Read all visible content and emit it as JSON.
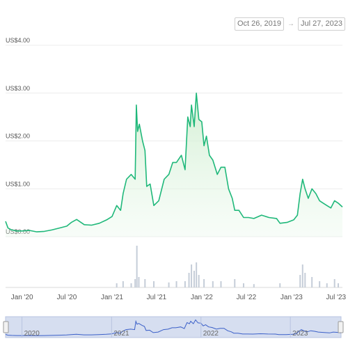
{
  "date_range": {
    "from": "Oct 26, 2019",
    "arrow": "→",
    "to": "Jul 27, 2023"
  },
  "colors": {
    "price_line": "#1fb87a",
    "price_fill": "#e6f7e8",
    "volume_bar": "#c5cdd8",
    "navigator_bg": "#d6def0",
    "navigator_line": "#3a5fc8"
  },
  "chart_data": {
    "type": "area",
    "ylim": [
      0,
      4
    ],
    "y_ticks": [
      {
        "value": 0,
        "label": "US$0.00"
      },
      {
        "value": 1,
        "label": "US$1.00"
      },
      {
        "value": 2,
        "label": "US$2.00"
      },
      {
        "value": 3,
        "label": "US$3.00"
      },
      {
        "value": 4,
        "label": "US$4.00"
      }
    ],
    "x_ticks": [
      {
        "date": "2020-01-01",
        "label": "Jan '20"
      },
      {
        "date": "2020-07-01",
        "label": "Jul '20"
      },
      {
        "date": "2021-01-01",
        "label": "Jan '21"
      },
      {
        "date": "2021-07-01",
        "label": "Jul '21"
      },
      {
        "date": "2022-01-01",
        "label": "Jan '22"
      },
      {
        "date": "2022-07-01",
        "label": "Jul '22"
      },
      {
        "date": "2023-01-01",
        "label": "Jan '23"
      },
      {
        "date": "2023-07-01",
        "label": "Jul '23"
      }
    ],
    "navigator_ticks": [
      {
        "date": "2020-01-01",
        "label": "2020"
      },
      {
        "date": "2021-01-01",
        "label": "2021"
      },
      {
        "date": "2022-01-01",
        "label": "2022"
      },
      {
        "date": "2023-01-01",
        "label": "2023"
      }
    ],
    "series": [
      {
        "values": [
          [
            "2019-10-26",
            0.32
          ],
          [
            "2019-11-05",
            0.18
          ],
          [
            "2019-11-20",
            0.14
          ],
          [
            "2019-12-10",
            0.12
          ],
          [
            "2020-01-01",
            0.12
          ],
          [
            "2020-02-01",
            0.13
          ],
          [
            "2020-03-01",
            0.1
          ],
          [
            "2020-04-01",
            0.11
          ],
          [
            "2020-05-01",
            0.14
          ],
          [
            "2020-06-01",
            0.18
          ],
          [
            "2020-07-01",
            0.22
          ],
          [
            "2020-07-20",
            0.3
          ],
          [
            "2020-08-10",
            0.36
          ],
          [
            "2020-09-10",
            0.25
          ],
          [
            "2020-10-10",
            0.24
          ],
          [
            "2020-11-10",
            0.28
          ],
          [
            "2020-12-10",
            0.35
          ],
          [
            "2021-01-01",
            0.42
          ],
          [
            "2021-01-20",
            0.65
          ],
          [
            "2021-02-05",
            0.55
          ],
          [
            "2021-02-15",
            0.9
          ],
          [
            "2021-03-01",
            1.2
          ],
          [
            "2021-03-20",
            1.3
          ],
          [
            "2021-04-05",
            1.2
          ],
          [
            "2021-04-10",
            2.75
          ],
          [
            "2021-04-15",
            2.2
          ],
          [
            "2021-04-22",
            2.35
          ],
          [
            "2021-05-05",
            2.0
          ],
          [
            "2021-05-15",
            1.8
          ],
          [
            "2021-05-22",
            1.05
          ],
          [
            "2021-06-05",
            1.1
          ],
          [
            "2021-06-20",
            0.65
          ],
          [
            "2021-07-10",
            0.75
          ],
          [
            "2021-08-01",
            1.2
          ],
          [
            "2021-08-20",
            1.3
          ],
          [
            "2021-09-05",
            1.55
          ],
          [
            "2021-09-20",
            1.55
          ],
          [
            "2021-10-10",
            1.7
          ],
          [
            "2021-10-25",
            1.4
          ],
          [
            "2021-11-05",
            2.5
          ],
          [
            "2021-11-15",
            2.3
          ],
          [
            "2021-11-20",
            2.75
          ],
          [
            "2021-12-01",
            2.3
          ],
          [
            "2021-12-10",
            3.0
          ],
          [
            "2021-12-20",
            2.45
          ],
          [
            "2022-01-01",
            2.4
          ],
          [
            "2022-01-10",
            1.9
          ],
          [
            "2022-01-20",
            2.1
          ],
          [
            "2022-02-01",
            1.7
          ],
          [
            "2022-02-15",
            1.6
          ],
          [
            "2022-03-05",
            1.3
          ],
          [
            "2022-03-20",
            1.45
          ],
          [
            "2022-04-05",
            1.45
          ],
          [
            "2022-04-20",
            1.0
          ],
          [
            "2022-05-05",
            0.8
          ],
          [
            "2022-05-15",
            0.55
          ],
          [
            "2022-06-01",
            0.55
          ],
          [
            "2022-06-20",
            0.4
          ],
          [
            "2022-07-10",
            0.4
          ],
          [
            "2022-08-01",
            0.38
          ],
          [
            "2022-09-01",
            0.45
          ],
          [
            "2022-10-01",
            0.4
          ],
          [
            "2022-11-01",
            0.38
          ],
          [
            "2022-11-15",
            0.28
          ],
          [
            "2022-12-15",
            0.3
          ],
          [
            "2023-01-10",
            0.35
          ],
          [
            "2023-01-25",
            0.45
          ],
          [
            "2023-02-05",
            0.9
          ],
          [
            "2023-02-15",
            1.2
          ],
          [
            "2023-02-25",
            1.0
          ],
          [
            "2023-03-10",
            0.8
          ],
          [
            "2023-03-25",
            1.0
          ],
          [
            "2023-04-10",
            0.9
          ],
          [
            "2023-04-25",
            0.75
          ],
          [
            "2023-05-10",
            0.7
          ],
          [
            "2023-05-25",
            0.65
          ],
          [
            "2023-06-10",
            0.6
          ],
          [
            "2023-06-25",
            0.75
          ],
          [
            "2023-07-10",
            0.7
          ],
          [
            "2023-07-27",
            0.62
          ]
        ]
      }
    ],
    "volume": [
      [
        "2021-01-20",
        0.1
      ],
      [
        "2021-02-15",
        0.15
      ],
      [
        "2021-03-20",
        0.1
      ],
      [
        "2021-04-05",
        0.2
      ],
      [
        "2021-04-12",
        1.0
      ],
      [
        "2021-04-20",
        0.25
      ],
      [
        "2021-05-15",
        0.2
      ],
      [
        "2021-06-20",
        0.15
      ],
      [
        "2021-08-20",
        0.12
      ],
      [
        "2021-09-20",
        0.15
      ],
      [
        "2021-10-25",
        0.15
      ],
      [
        "2021-11-10",
        0.35
      ],
      [
        "2021-11-20",
        0.55
      ],
      [
        "2021-12-01",
        0.4
      ],
      [
        "2021-12-10",
        0.6
      ],
      [
        "2021-12-20",
        0.3
      ],
      [
        "2022-01-10",
        0.2
      ],
      [
        "2022-02-15",
        0.15
      ],
      [
        "2022-03-20",
        0.15
      ],
      [
        "2022-05-15",
        0.2
      ],
      [
        "2022-06-20",
        0.1
      ],
      [
        "2022-08-01",
        0.08
      ],
      [
        "2022-11-15",
        0.1
      ],
      [
        "2023-02-05",
        0.3
      ],
      [
        "2023-02-15",
        0.55
      ],
      [
        "2023-02-25",
        0.35
      ],
      [
        "2023-03-25",
        0.25
      ],
      [
        "2023-04-25",
        0.15
      ],
      [
        "2023-05-25",
        0.1
      ],
      [
        "2023-06-25",
        0.2
      ],
      [
        "2023-07-10",
        0.1
      ]
    ]
  }
}
